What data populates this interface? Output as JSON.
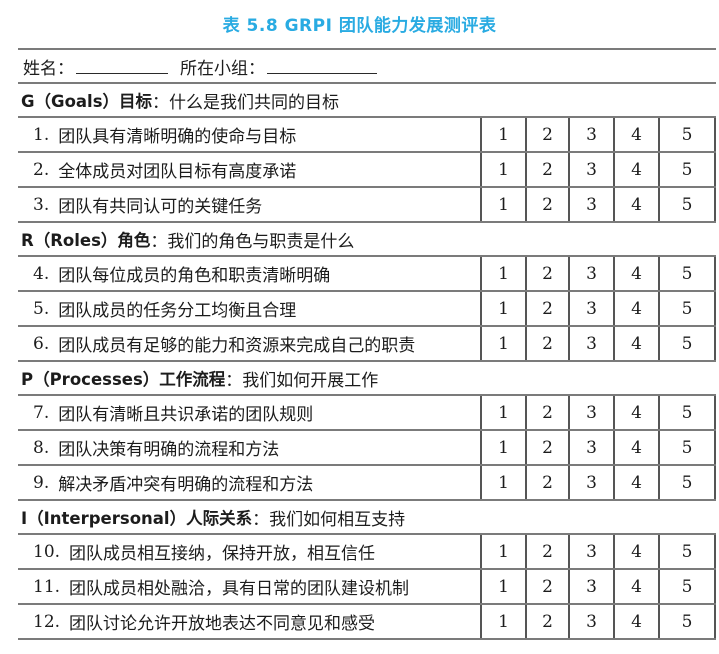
{
  "title": "表 5.8  GRPI 团队能力发展测评表",
  "accent_color": "#29ABE2",
  "form_header": {
    "name_label": "姓名：",
    "group_label": "所在小组："
  },
  "rating_scale": [
    "1",
    "2",
    "3",
    "4",
    "5"
  ],
  "sections": [
    {
      "label": "G（Goals）目标",
      "question": "：什么是我们共同的目标",
      "items": [
        {
          "no": "1.",
          "text": "团队具有清晰明确的使命与目标"
        },
        {
          "no": "2.",
          "text": "全体成员对团队目标有高度承诺"
        },
        {
          "no": "3.",
          "text": "团队有共同认可的关键任务"
        }
      ]
    },
    {
      "label": "R（Roles）角色",
      "question": "：我们的角色与职责是什么",
      "items": [
        {
          "no": "4.",
          "text": "团队每位成员的角色和职责清晰明确"
        },
        {
          "no": "5.",
          "text": "团队成员的任务分工均衡且合理"
        },
        {
          "no": "6.",
          "text": "团队成员有足够的能力和资源来完成自己的职责"
        }
      ]
    },
    {
      "label": "P（Processes）工作流程",
      "question": "：我们如何开展工作",
      "items": [
        {
          "no": "7.",
          "text": "团队有清晰且共识承诺的团队规则"
        },
        {
          "no": "8.",
          "text": "团队决策有明确的流程和方法"
        },
        {
          "no": "9.",
          "text": "解决矛盾冲突有明确的流程和方法"
        }
      ]
    },
    {
      "label": "I（Interpersonal）人际关系",
      "question": "：我们如何相互支持",
      "items": [
        {
          "no": "10.",
          "text": "团队成员相互接纳，保持开放，相互信任"
        },
        {
          "no": "11.",
          "text": "团队成员相处融洽，具有日常的团队建设机制"
        },
        {
          "no": "12.",
          "text": "团队讨论允许开放地表达不同意见和感受"
        }
      ]
    }
  ]
}
